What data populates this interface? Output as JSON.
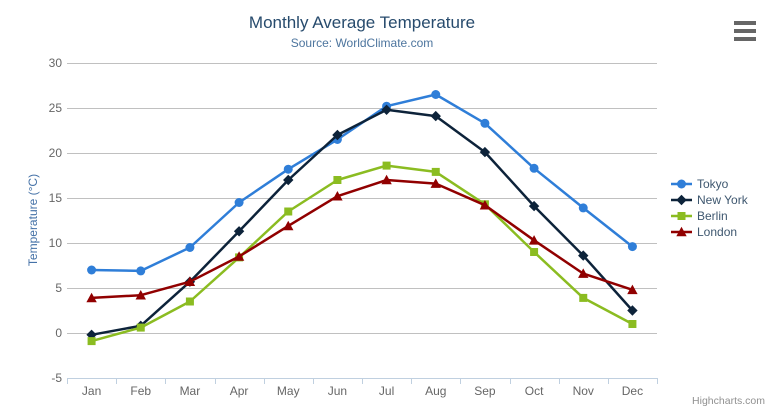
{
  "chart": {
    "title": "Monthly Average Temperature",
    "subtitle": "Source: WorldClimate.com",
    "credit": "Highcharts.com",
    "context_menu_icon": "hamburger-icon"
  },
  "colors": {
    "title": "#274b6d",
    "subtitle": "#4d759e",
    "axis_labels": "#666666",
    "y_axis_title": "#4572a7",
    "legend_text": "#3e576f",
    "gridline": "#c0c0c0",
    "axis_line": "#c0d0e0",
    "credit": "#909090",
    "menu_icon": "#666666",
    "background": "#ffffff"
  },
  "chart_data": {
    "type": "line",
    "title": "Monthly Average Temperature",
    "subtitle": "Source: WorldClimate.com",
    "xlabel": "",
    "ylabel": "Temperature (°C)",
    "categories": [
      "Jan",
      "Feb",
      "Mar",
      "Apr",
      "May",
      "Jun",
      "Jul",
      "Aug",
      "Sep",
      "Oct",
      "Nov",
      "Dec"
    ],
    "ylim": [
      -5,
      30
    ],
    "yticks": [
      30,
      25,
      20,
      15,
      10,
      5,
      0,
      -5
    ],
    "grid": true,
    "legend_position": "right",
    "series": [
      {
        "name": "Tokyo",
        "color": "#2f7ed8",
        "marker": "circle",
        "values": [
          7.0,
          6.9,
          9.5,
          14.5,
          18.2,
          21.5,
          25.2,
          26.5,
          23.3,
          18.3,
          13.9,
          9.6
        ]
      },
      {
        "name": "New York",
        "color": "#0d233a",
        "marker": "diamond",
        "values": [
          -0.2,
          0.8,
          5.7,
          11.3,
          17.0,
          22.0,
          24.8,
          24.1,
          20.1,
          14.1,
          8.6,
          2.5
        ]
      },
      {
        "name": "Berlin",
        "color": "#8bbc21",
        "marker": "square",
        "values": [
          -0.9,
          0.6,
          3.5,
          8.4,
          13.5,
          17.0,
          18.6,
          17.9,
          14.3,
          9.0,
          3.9,
          1.0
        ]
      },
      {
        "name": "London",
        "color": "#910000",
        "marker": "triangle",
        "values": [
          3.9,
          4.2,
          5.7,
          8.5,
          11.9,
          15.2,
          17.0,
          16.6,
          14.2,
          10.3,
          6.6,
          4.8
        ]
      }
    ]
  }
}
